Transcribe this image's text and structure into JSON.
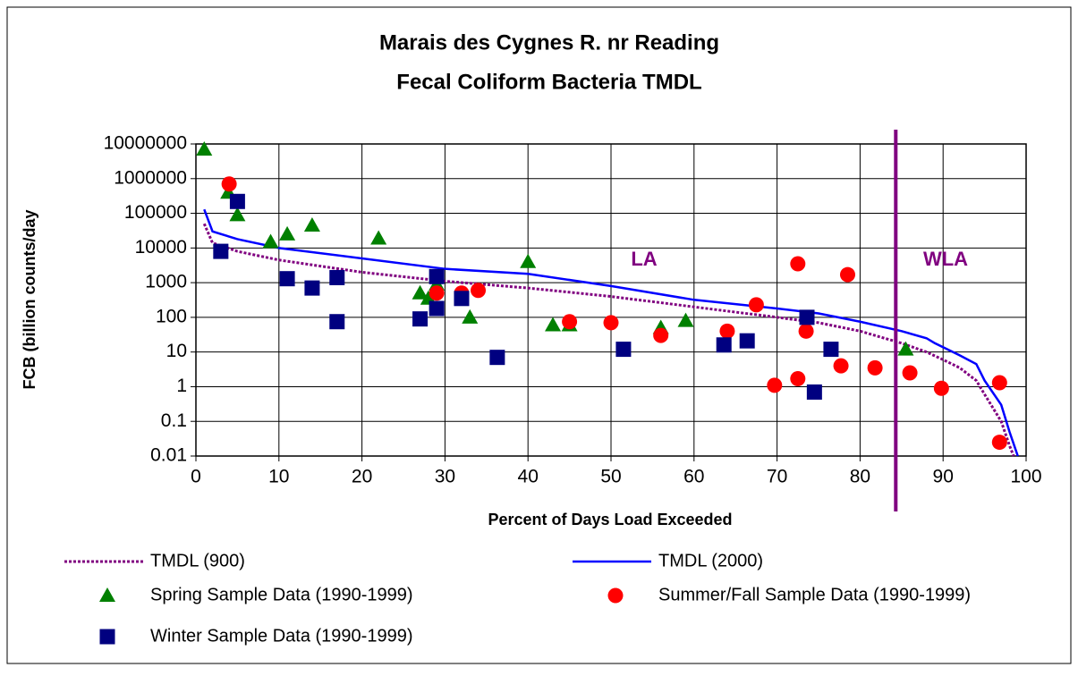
{
  "chart_data": {
    "type": "scatter",
    "title_lines": [
      "Marais des Cygnes R. nr Reading",
      "Fecal Coliform Bacteria TMDL"
    ],
    "x_label": "Percent of Days Load Exceeded",
    "y_label": "FCB (billion counts/day",
    "xlim": [
      0,
      100
    ],
    "xticks": [
      0,
      10,
      20,
      30,
      40,
      50,
      60,
      70,
      80,
      90,
      100
    ],
    "ylim": [
      0.01,
      10000000
    ],
    "yticks": [
      0.01,
      0.1,
      1,
      10,
      100,
      1000,
      10000,
      100000,
      1000000,
      10000000
    ],
    "y_log": true,
    "grid": true,
    "divider_x": 84.3,
    "divider_color": "#800080",
    "region_labels": [
      "LA",
      "WLA"
    ],
    "series": [
      {
        "name": "TMDL (900)",
        "color": "#800080",
        "style": "dotted-line",
        "x": [
          1,
          2,
          5,
          10,
          20,
          30,
          40,
          50,
          60,
          70,
          75,
          80,
          85,
          88,
          90,
          92,
          94,
          95,
          97,
          98,
          98.5
        ],
        "values": [
          50000,
          14000,
          8000,
          4500,
          2000,
          1100,
          700,
          400,
          200,
          100,
          70,
          40,
          18,
          10,
          6,
          3.5,
          1.5,
          0.6,
          0.1,
          0.02,
          0.01
        ]
      },
      {
        "name": "TMDL (2000)",
        "color": "#0000ff",
        "style": "dashed-line",
        "x": [
          1,
          2,
          5,
          10,
          20,
          30,
          40,
          50,
          60,
          70,
          75,
          80,
          85,
          88,
          89,
          92,
          94,
          95,
          97,
          98,
          99
        ],
        "values": [
          130000,
          30000,
          18000,
          10000,
          5000,
          2500,
          1800,
          800,
          320,
          180,
          130,
          75,
          40,
          25,
          18,
          8,
          4.5,
          1.5,
          0.3,
          0.05,
          0.01
        ]
      },
      {
        "name": "Spring Sample Data (1990-1999)",
        "color": "#008000",
        "style": "triangle",
        "x": [
          1,
          3.9,
          5,
          9,
          11,
          14,
          22,
          27,
          28,
          29,
          33,
          40,
          43,
          45,
          56,
          59,
          85.5
        ],
        "values": [
          7000000,
          400000,
          90000,
          15000,
          25000,
          45000,
          19000,
          500,
          350,
          900,
          100,
          4000,
          60,
          60,
          50,
          80,
          12
        ]
      },
      {
        "name": "Summer/Fall Sample Data (1990-1999)",
        "color": "#ff0000",
        "style": "circle",
        "x": [
          4,
          29,
          32,
          34,
          45,
          50,
          56,
          64,
          67.5,
          72.5,
          78.5,
          73.5,
          69.7,
          72.5,
          77.7,
          81.8,
          86,
          89.8,
          96.8,
          96.8
        ],
        "values": [
          700000,
          500,
          500,
          600,
          75,
          70,
          30,
          40,
          230,
          3500,
          1700,
          40,
          1.1,
          1.7,
          4,
          3.5,
          2.5,
          0.9,
          1.3,
          0.025
        ]
      },
      {
        "name": "Winter Sample Data (1990-1999)",
        "color": "#000080",
        "style": "square",
        "x": [
          3,
          5,
          11,
          14,
          17,
          17,
          27,
          29,
          29,
          32,
          36.3,
          51.5,
          63.6,
          66.4,
          73.6,
          74.5,
          76.5
        ],
        "values": [
          8000,
          220000,
          1300,
          700,
          1400,
          75,
          90,
          1500,
          180,
          350,
          7,
          12,
          16,
          21,
          100,
          0.7,
          12
        ]
      }
    ]
  }
}
